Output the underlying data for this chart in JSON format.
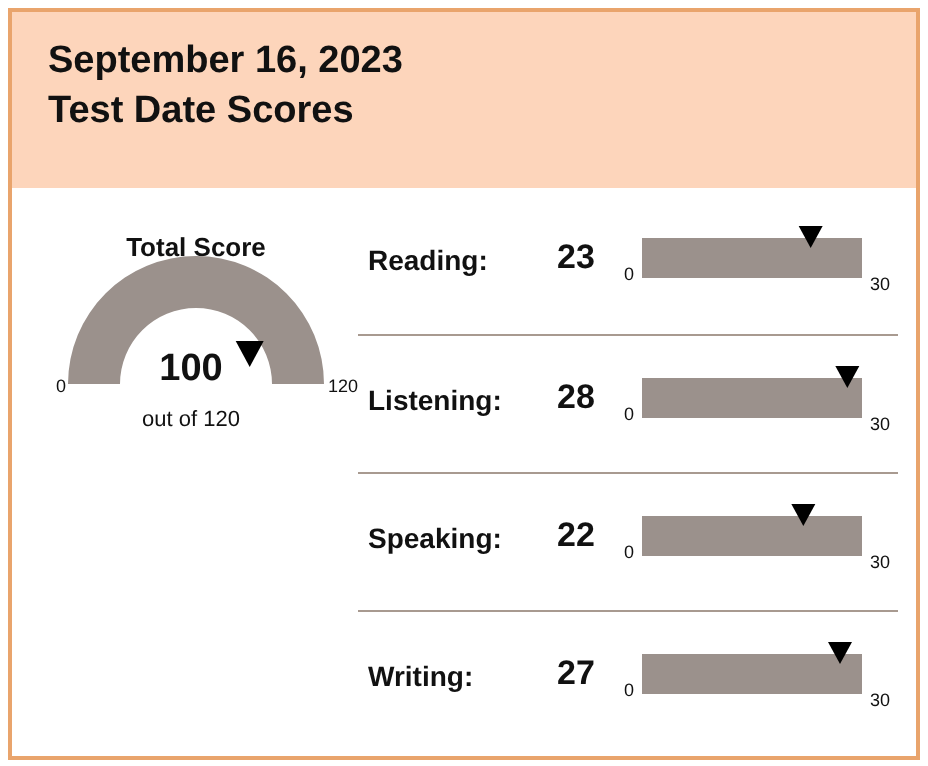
{
  "chart_data": [
    {
      "type": "other",
      "title": "September 16, 2023",
      "subtitle": "Test Date Scores"
    },
    {
      "type": "other",
      "title": "Total Score",
      "values": [
        100
      ],
      "data_labels": true,
      "annotations": [
        "0",
        "120",
        "out of 120"
      ]
    },
    {
      "type": "other",
      "title": "Reading:",
      "values": [
        23
      ],
      "data_labels": true,
      "annotations": [
        "0",
        "30"
      ]
    },
    {
      "type": "other",
      "title": "Listening:",
      "values": [
        28
      ],
      "data_labels": true,
      "annotations": [
        "0",
        "30"
      ]
    },
    {
      "type": "other",
      "title": "Speaking:",
      "values": [
        22
      ],
      "data_labels": true,
      "annotations": [
        "0",
        "30"
      ]
    },
    {
      "type": "other",
      "title": "Writing:",
      "values": [
        27
      ],
      "data_labels": true,
      "annotations": [
        "0",
        "30"
      ]
    }
  ]
}
